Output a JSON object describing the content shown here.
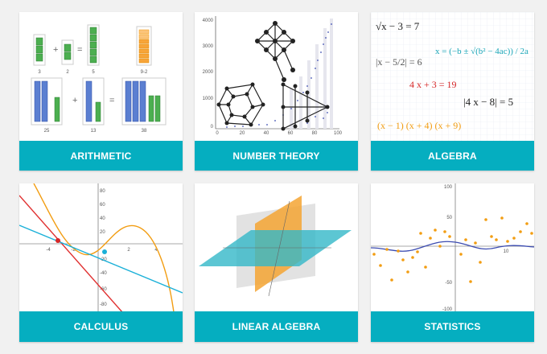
{
  "cards": [
    {
      "label": "ARITHMETIC"
    },
    {
      "label": "NUMBER THEORY"
    },
    {
      "label": "ALGEBRA"
    },
    {
      "label": "CALCULUS"
    },
    {
      "label": "LINEAR ALGEBRA"
    },
    {
      "label": "STATISTICS"
    }
  ],
  "arithmetic": {
    "ops": [
      "+",
      "=",
      "+",
      "="
    ],
    "nums": [
      "3",
      "2",
      "5",
      "9-2",
      "25",
      "13",
      "38"
    ]
  },
  "number_theory": {
    "yticks": [
      "4000",
      "3000",
      "2000",
      "1000",
      "0"
    ],
    "xticks": [
      "0",
      "20",
      "40",
      "60",
      "80",
      "100"
    ]
  },
  "algebra": {
    "eq1": "√x − 3 = 7",
    "eq2": "x = (−b ± √(b² − 4ac)) / 2a",
    "eq3": "|x − 5/2| = 6",
    "eq4": "4 x + 3 = 19",
    "eq5": "|4 x − 8| = 5",
    "eq6": "(x − 1) (x + 4) (x + 9)",
    "colors": {
      "dark": "#222222",
      "teal": "#1aa6b8",
      "red": "#d62728",
      "orange": "#f29d12"
    }
  },
  "calculus": {
    "yticks": [
      "80",
      "60",
      "40",
      "20",
      "-20",
      "-40",
      "-60",
      "-80"
    ],
    "xticks": [
      "-4",
      "-2",
      "2",
      "4"
    ]
  },
  "statistics": {
    "yticks": [
      "100",
      "50",
      "-50",
      "-100"
    ],
    "xticks": [
      "10"
    ]
  }
}
